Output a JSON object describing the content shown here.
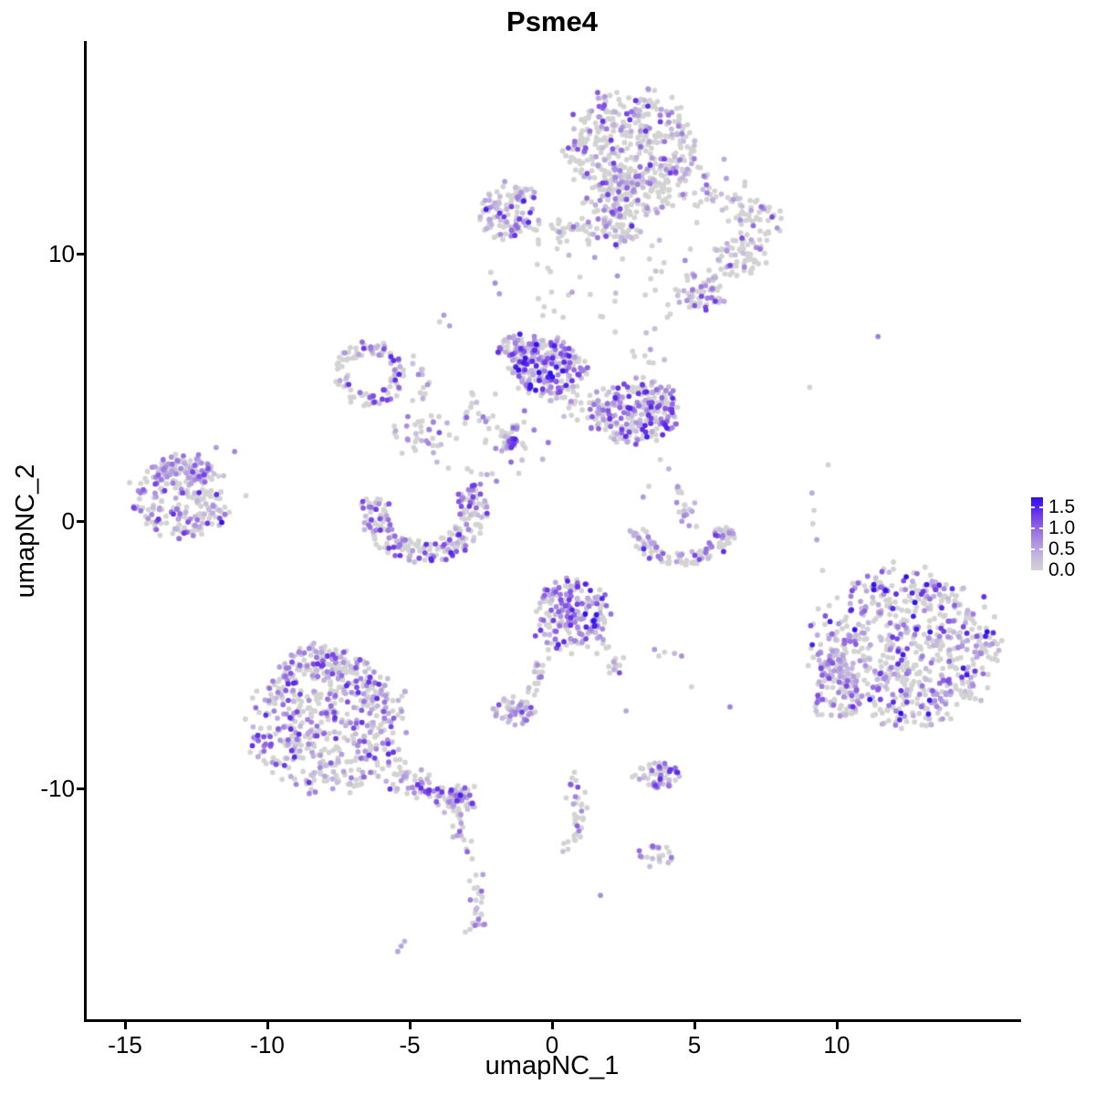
{
  "chart_data": {
    "type": "scatter",
    "title": "Psme4",
    "xlabel": "umapNC_1",
    "ylabel": "umapNC_2",
    "x_ticks": [
      -15,
      -10,
      -5,
      0,
      5,
      10
    ],
    "y_ticks": [
      10,
      0,
      -10
    ],
    "xlim": [
      -16.4,
      16.45
    ],
    "ylim": [
      -18.65,
      17.95
    ],
    "grid": false,
    "panel_background": "#ffffff",
    "legend": {
      "position": "right",
      "labels": [
        "1.5",
        "1.0",
        "0.5",
        "0.0"
      ],
      "values": [
        1.5,
        1.0,
        0.5,
        0.0
      ],
      "dash_values": [
        0.5,
        1.0,
        1.5
      ],
      "vmax": 1.75
    },
    "colorscale": {
      "zero": "#d3d3d3",
      "stops": [
        [
          0.0,
          "#d3d3d3"
        ],
        [
          0.18,
          "#c6bade"
        ],
        [
          0.38,
          "#ad93e0"
        ],
        [
          0.58,
          "#9167e3"
        ],
        [
          0.78,
          "#6c35e9"
        ],
        [
          1.0,
          "#2b0ff0"
        ]
      ]
    },
    "point_radius_px": 2.9,
    "seed": 42,
    "clusters": [
      {
        "name": "top-main",
        "shape": "blob",
        "cx": 2.7,
        "cy": 14.0,
        "rx": 2.25,
        "ry": 2.1,
        "n": 420,
        "frac": 0.32,
        "vmax": 1.45
      },
      {
        "name": "top-main-lower",
        "shape": "blob",
        "cx": 2.55,
        "cy": 12.1,
        "rx": 1.5,
        "ry": 0.9,
        "n": 110,
        "frac": 0.3,
        "vmax": 1.3
      },
      {
        "name": "top-arm",
        "shape": "strand",
        "path": [
          [
            4.4,
            13.0
          ],
          [
            5.6,
            12.3
          ],
          [
            6.9,
            11.6
          ],
          [
            7.4,
            11.2
          ]
        ],
        "jitter": 0.45,
        "n": 95,
        "frac": 0.27,
        "vmax": 1.3
      },
      {
        "name": "arm-blob-a",
        "shape": "blob",
        "cx": 6.6,
        "cy": 9.9,
        "rx": 1.0,
        "ry": 0.8,
        "n": 70,
        "frac": 0.3,
        "vmax": 1.4
      },
      {
        "name": "arm-blob-b",
        "shape": "blob",
        "cx": 5.3,
        "cy": 8.6,
        "rx": 0.9,
        "ry": 0.75,
        "n": 65,
        "frac": 0.35,
        "vmax": 1.4
      },
      {
        "name": "topleft-blob",
        "shape": "blob",
        "cx": -1.5,
        "cy": 11.6,
        "rx": 1.05,
        "ry": 1.05,
        "n": 115,
        "frac": 0.45,
        "vmax": 1.6
      },
      {
        "name": "topleft-bridge",
        "shape": "strand",
        "path": [
          [
            -0.4,
            11.1
          ],
          [
            0.7,
            10.9
          ],
          [
            1.7,
            11.1
          ]
        ],
        "jitter": 0.28,
        "n": 40,
        "frac": 0.2,
        "vmax": 1.0
      },
      {
        "name": "top-mini",
        "shape": "blob",
        "cx": 2.35,
        "cy": 11.1,
        "rx": 0.75,
        "ry": 0.9,
        "n": 55,
        "frac": 0.35,
        "vmax": 1.5
      },
      {
        "name": "below-topleft-dots",
        "shape": "points",
        "pts": [
          [
            -2.0,
            8.9,
            0.7
          ],
          [
            -1.85,
            8.5,
            0.6
          ],
          [
            -2.15,
            9.3,
            0
          ],
          [
            -3.8,
            7.7,
            0.6
          ],
          [
            -3.6,
            7.3,
            0.55
          ],
          [
            -3.95,
            7.45,
            0
          ]
        ]
      },
      {
        "name": "gap-scatter-top",
        "shape": "box",
        "x0": -0.6,
        "x1": 5.0,
        "y0": 7.6,
        "y1": 10.9,
        "n": 42,
        "frac": 0.3,
        "vmax": 1.2
      },
      {
        "name": "gap-scatter-mid",
        "shape": "box",
        "x0": 2.0,
        "x1": 4.5,
        "y0": 5.9,
        "y1": 7.3,
        "n": 10,
        "frac": 0.3,
        "vmax": 1.0
      },
      {
        "name": "ring",
        "shape": "ring",
        "cx": -6.4,
        "cy": 5.5,
        "r": 1.0,
        "w": 0.5,
        "a0": 0,
        "a1": 360,
        "n": 115,
        "frac": 0.45,
        "vmax": 1.5
      },
      {
        "name": "ring-side-strand",
        "shape": "strand",
        "path": [
          [
            -4.65,
            6.2
          ],
          [
            -4.5,
            5.3
          ],
          [
            -4.65,
            4.4
          ]
        ],
        "jitter": 0.16,
        "n": 16,
        "frac": 0.35,
        "vmax": 1.2
      },
      {
        "name": "mid-left-scatter",
        "shape": "strand",
        "path": [
          [
            -5.4,
            3.6
          ],
          [
            -4.4,
            3.1
          ],
          [
            -3.3,
            3.4
          ]
        ],
        "jitter": 0.35,
        "n": 40,
        "frac": 0.35,
        "vmax": 1.3
      },
      {
        "name": "gap-to-center",
        "shape": "strand",
        "path": [
          [
            -3.1,
            4.4
          ],
          [
            -2.4,
            3.9
          ]
        ],
        "jitter": 0.3,
        "n": 14,
        "frac": 0.3,
        "vmax": 1.1
      },
      {
        "name": "center-lobe-a",
        "shape": "blob",
        "cx": -0.15,
        "cy": 5.7,
        "rx": 1.3,
        "ry": 1.15,
        "n": 250,
        "frac": 0.62,
        "vmax": 1.75
      },
      {
        "name": "center-lobe-a-top",
        "shape": "blob",
        "cx": -1.2,
        "cy": 6.4,
        "rx": 0.8,
        "ry": 0.55,
        "n": 50,
        "frac": 0.6,
        "vmax": 1.6
      },
      {
        "name": "center-connector",
        "shape": "strand",
        "path": [
          [
            0.7,
            4.6
          ],
          [
            1.4,
            4.1
          ],
          [
            1.9,
            3.8
          ]
        ],
        "jitter": 0.38,
        "n": 40,
        "frac": 0.3,
        "vmax": 1.2
      },
      {
        "name": "center-lobe-b",
        "shape": "blob",
        "cx": 3.0,
        "cy": 4.1,
        "rx": 1.5,
        "ry": 1.2,
        "n": 250,
        "frac": 0.5,
        "vmax": 1.6
      },
      {
        "name": "below-center-strand",
        "shape": "strand",
        "path": [
          [
            -1.9,
            3.8
          ],
          [
            -1.3,
            3.0
          ],
          [
            -0.8,
            2.3
          ]
        ],
        "jitter": 0.45,
        "n": 40,
        "frac": 0.45,
        "vmax": 1.4
      },
      {
        "name": "center-knot",
        "shape": "blob",
        "cx": -1.5,
        "cy": 2.9,
        "rx": 0.22,
        "ry": 0.3,
        "n": 22,
        "frac": 0.8,
        "vmax": 1.6
      },
      {
        "name": "knot-to-bowl",
        "shape": "strand",
        "path": [
          [
            -2.7,
            2.2
          ],
          [
            -2.2,
            1.5
          ]
        ],
        "jitter": 0.3,
        "n": 10,
        "frac": 0.3,
        "vmax": 1.0
      },
      {
        "name": "left-cluster",
        "shape": "blob",
        "cx": -13.1,
        "cy": 0.9,
        "rx": 1.8,
        "ry": 1.55,
        "n": 230,
        "frac": 0.42,
        "vmax": 1.5
      },
      {
        "name": "left-cluster-topedge",
        "shape": "blob",
        "cx": -12.9,
        "cy": 1.9,
        "rx": 1.2,
        "ry": 0.5,
        "n": 45,
        "frac": 0.68,
        "vmax": 1.3
      },
      {
        "name": "left-outliers",
        "shape": "points",
        "pts": [
          [
            -11.6,
            -0.05,
            1.72
          ],
          [
            -10.75,
            0.95,
            0
          ],
          [
            -11.15,
            2.6,
            0.8
          ],
          [
            -11.8,
            2.75,
            0.6
          ],
          [
            -12.15,
            1.8,
            0
          ],
          [
            -11.9,
            0.55,
            0.7
          ]
        ]
      },
      {
        "name": "bowl",
        "shape": "arc",
        "cx": -4.5,
        "cy": 0.35,
        "rx": 1.75,
        "ry": 1.5,
        "a0": 160,
        "a1": 395,
        "w": 0.55,
        "n": 225,
        "frac": 0.45,
        "vmax": 1.5
      },
      {
        "name": "smile",
        "shape": "arc",
        "cx": 4.55,
        "cy": -0.45,
        "rx": 1.5,
        "ry": 0.95,
        "a0": 170,
        "a1": 372,
        "w": 0.5,
        "n": 110,
        "frac": 0.35,
        "vmax": 1.5
      },
      {
        "name": "smile-strand",
        "shape": "strand",
        "path": [
          [
            4.3,
            1.5
          ],
          [
            4.6,
            0.7
          ],
          [
            4.85,
            0.05
          ]
        ],
        "jitter": 0.17,
        "n": 20,
        "frac": 0.45,
        "vmax": 1.3
      },
      {
        "name": "smile-west-dots",
        "shape": "points",
        "pts": [
          [
            3.4,
            1.3,
            0
          ],
          [
            3.2,
            0.9,
            0.6
          ],
          [
            3.8,
            2.3,
            0
          ],
          [
            4.1,
            1.95,
            0.4
          ]
        ]
      },
      {
        "name": "right-singles",
        "shape": "points",
        "pts": [
          [
            9.13,
            1.05,
            0.45
          ],
          [
            9.2,
            0.4,
            0
          ],
          [
            9.16,
            -0.1,
            0
          ],
          [
            9.3,
            -0.7,
            0.5
          ],
          [
            11.45,
            6.9,
            0.85
          ],
          [
            9.05,
            5.0,
            0
          ],
          [
            9.5,
            -1.85,
            0
          ],
          [
            9.7,
            2.1,
            0
          ]
        ]
      },
      {
        "name": "right-cluster",
        "shape": "blob",
        "cx": 12.3,
        "cy": -4.75,
        "rx": 3.25,
        "ry": 2.9,
        "n": 680,
        "frac": 0.42,
        "vmax": 1.75
      },
      {
        "name": "right-cluster-sw",
        "shape": "blob",
        "cx": 9.9,
        "cy": -6.6,
        "rx": 0.9,
        "ry": 0.9,
        "n": 45,
        "frac": 0.5,
        "vmax": 1.4
      },
      {
        "name": "right-cluster-patch",
        "shape": "blob",
        "cx": 9.85,
        "cy": -5.3,
        "rx": 0.55,
        "ry": 0.55,
        "n": 35,
        "frac": 0.9,
        "vmax": 0.85
      },
      {
        "name": "bottomcenter-cluster",
        "shape": "blob",
        "cx": 0.65,
        "cy": -3.5,
        "rx": 1.35,
        "ry": 1.35,
        "n": 210,
        "frac": 0.55,
        "vmax": 1.75
      },
      {
        "name": "bottomcenter-trail",
        "shape": "strand",
        "path": [
          [
            -0.2,
            -4.9
          ],
          [
            -0.55,
            -5.9
          ],
          [
            -0.75,
            -6.5
          ]
        ],
        "jitter": 0.14,
        "n": 20,
        "frac": 0.5,
        "vmax": 1.3
      },
      {
        "name": "bottomcenter-blob",
        "shape": "blob",
        "cx": -1.35,
        "cy": -7.1,
        "rx": 0.75,
        "ry": 0.5,
        "n": 55,
        "frac": 0.6,
        "vmax": 1.25
      },
      {
        "name": "bottomcenter-right-strand",
        "shape": "strand",
        "path": [
          [
            2.0,
            -4.6
          ],
          [
            2.2,
            -5.3
          ],
          [
            2.35,
            -5.8
          ]
        ],
        "jitter": 0.14,
        "n": 16,
        "frac": 0.45,
        "vmax": 1.3
      },
      {
        "name": "mid-bottom-dots",
        "shape": "points",
        "pts": [
          [
            3.6,
            -4.8,
            0.6
          ],
          [
            3.75,
            -5.05,
            0
          ],
          [
            3.95,
            -4.9,
            0
          ],
          [
            4.3,
            -4.95,
            0.35
          ],
          [
            4.55,
            -5.05,
            0.7
          ],
          [
            6.25,
            -6.95,
            0.8
          ],
          [
            4.9,
            -6.2,
            0
          ],
          [
            2.6,
            -7.1,
            0.5
          ]
        ]
      },
      {
        "name": "bottomleft-cluster",
        "shape": "blob",
        "cx": -7.85,
        "cy": -7.5,
        "rx": 2.7,
        "ry": 2.6,
        "n": 560,
        "frac": 0.45,
        "vmax": 1.5
      },
      {
        "name": "bottomleft-top-bump",
        "shape": "blob",
        "cx": -8.3,
        "cy": -5.2,
        "rx": 1.1,
        "ry": 0.6,
        "n": 55,
        "frac": 0.45,
        "vmax": 1.4
      },
      {
        "name": "bottomleft-tail",
        "shape": "strand",
        "path": [
          [
            -5.6,
            -9.3
          ],
          [
            -4.7,
            -9.9
          ],
          [
            -3.8,
            -10.3
          ],
          [
            -3.1,
            -10.6
          ]
        ],
        "jitter": 0.32,
        "n": 90,
        "frac": 0.5,
        "vmax": 1.5
      },
      {
        "name": "tail-tip",
        "shape": "blob",
        "cx": -3.2,
        "cy": -10.4,
        "rx": 0.55,
        "ry": 0.5,
        "n": 38,
        "frac": 0.62,
        "vmax": 1.7
      },
      {
        "name": "tail-column",
        "shape": "strand",
        "path": [
          [
            -3.3,
            -11.3
          ],
          [
            -3.0,
            -12.1
          ],
          [
            -2.75,
            -12.9
          ]
        ],
        "jitter": 0.12,
        "n": 12,
        "frac": 0.5,
        "vmax": 1.1
      },
      {
        "name": "bottom-hook",
        "shape": "strand",
        "path": [
          [
            -2.85,
            -13.3
          ],
          [
            -2.6,
            -14.1
          ],
          [
            -2.45,
            -14.9
          ],
          [
            -2.85,
            -15.3
          ]
        ],
        "jitter": 0.13,
        "n": 26,
        "frac": 0.6,
        "vmax": 1.1
      },
      {
        "name": "bottom-pair",
        "shape": "points",
        "pts": [
          [
            -5.42,
            -16.1,
            0.5
          ],
          [
            -5.3,
            -15.9,
            0.5
          ],
          [
            -5.18,
            -15.72,
            0.42
          ]
        ]
      },
      {
        "name": "south-trail",
        "shape": "strand",
        "path": [
          [
            0.45,
            -9.3
          ],
          [
            0.85,
            -10.1
          ],
          [
            1.05,
            -10.9
          ],
          [
            0.85,
            -11.7
          ],
          [
            0.4,
            -12.25
          ]
        ],
        "jitter": 0.16,
        "n": 35,
        "frac": 0.35,
        "vmax": 1.2
      },
      {
        "name": "south-cluster",
        "shape": "blob",
        "cx": 3.7,
        "cy": -9.5,
        "rx": 0.85,
        "ry": 0.5,
        "n": 55,
        "frac": 0.55,
        "vmax": 1.5
      },
      {
        "name": "south-small-blob",
        "shape": "blob",
        "cx": 3.6,
        "cy": -12.55,
        "rx": 0.6,
        "ry": 0.45,
        "n": 20,
        "frac": 0.45,
        "vmax": 1.2
      },
      {
        "name": "south-single",
        "shape": "points",
        "pts": [
          [
            1.7,
            -14.0,
            0.7
          ]
        ]
      }
    ]
  }
}
